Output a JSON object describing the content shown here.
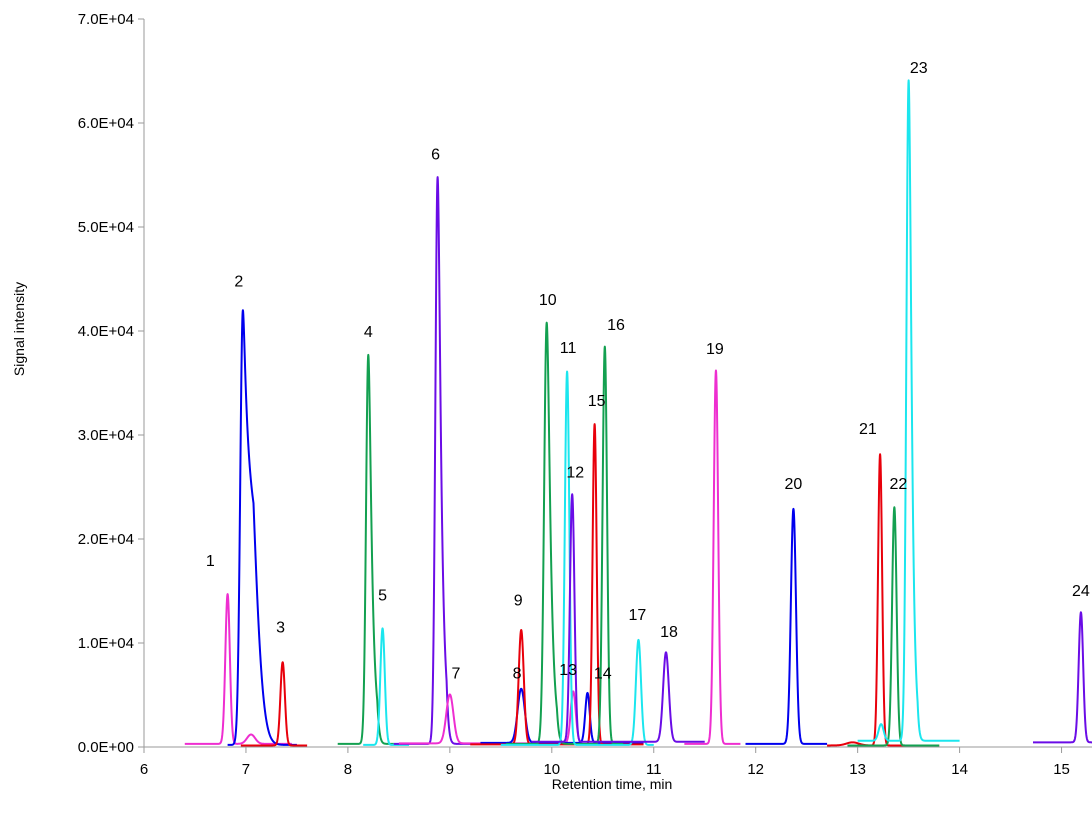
{
  "chart_data": {
    "type": "line",
    "title": "",
    "xlabel": "Retention time, min",
    "ylabel": "Signal intensity",
    "xlim": [
      6,
      15.3
    ],
    "ylim": [
      0,
      70000
    ],
    "x_ticks": [
      6,
      7,
      8,
      9,
      10,
      11,
      12,
      13,
      14,
      15
    ],
    "x_tick_labels": [
      "6",
      "7",
      "8",
      "9",
      "10",
      "11",
      "12",
      "13",
      "14",
      "15"
    ],
    "y_ticks": [
      0,
      10000,
      20000,
      30000,
      40000,
      50000,
      60000,
      70000
    ],
    "y_tick_labels": [
      "0.0E+00",
      "1.0E+04",
      "2.0E+04",
      "3.0E+04",
      "4.0E+04",
      "5.0E+04",
      "6.0E+04",
      "7.0E+04"
    ],
    "grid": false,
    "legend": "none",
    "colors": {
      "magenta": "#ee2ed0",
      "blue": "#0000ee",
      "red": "#e8000b",
      "green": "#13a050",
      "cyan": "#1be6ee",
      "violet": "#6a0ce6"
    },
    "series": [
      {
        "color": "magenta",
        "x_range": [
          6.4,
          7.45
        ],
        "baseline": 300,
        "peaks": [
          {
            "rt": 6.82,
            "height": 14400,
            "width": 0.022
          },
          {
            "rt": 7.05,
            "height": 900,
            "width": 0.04
          }
        ]
      },
      {
        "color": "blue",
        "x_range": [
          6.82,
          7.5
        ],
        "baseline": 200,
        "peaks": [
          {
            "rt": 6.97,
            "height": 41800,
            "width": 0.026,
            "tail": 0.07
          }
        ]
      },
      {
        "color": "red",
        "x_range": [
          6.95,
          7.6
        ],
        "baseline": 150,
        "peaks": [
          {
            "rt": 7.36,
            "height": 8000,
            "width": 0.022
          }
        ]
      },
      {
        "color": "green",
        "x_range": [
          7.9,
          8.45
        ],
        "baseline": 300,
        "peaks": [
          {
            "rt": 8.2,
            "height": 37400,
            "width": 0.022,
            "tail": 0.02
          }
        ]
      },
      {
        "color": "cyan",
        "x_range": [
          8.15,
          8.6
        ],
        "baseline": 200,
        "peaks": [
          {
            "rt": 8.34,
            "height": 11200,
            "width": 0.022
          }
        ]
      },
      {
        "color": "violet",
        "x_range": [
          8.45,
          9.25
        ],
        "baseline": 300,
        "peaks": [
          {
            "rt": 8.88,
            "height": 54500,
            "width": 0.022,
            "tail": 0.02
          }
        ]
      },
      {
        "color": "magenta",
        "x_range": [
          8.5,
          10.3
        ],
        "baseline": 350,
        "peaks": [
          {
            "rt": 9.0,
            "height": 4700,
            "width": 0.035
          },
          {
            "rt": 10.21,
            "height": 5000,
            "width": 0.025
          }
        ]
      },
      {
        "color": "blue",
        "x_range": [
          9.3,
          10.9
        ],
        "baseline": 400,
        "peaks": [
          {
            "rt": 9.7,
            "height": 5200,
            "width": 0.035
          },
          {
            "rt": 10.35,
            "height": 4800,
            "width": 0.022
          }
        ]
      },
      {
        "color": "red",
        "x_range": [
          9.2,
          10.9
        ],
        "baseline": 250,
        "peaks": [
          {
            "rt": 9.7,
            "height": 11000,
            "width": 0.025
          },
          {
            "rt": 10.42,
            "height": 30800,
            "width": 0.02
          }
        ]
      },
      {
        "color": "green",
        "x_range": [
          9.55,
          10.7
        ],
        "baseline": 300,
        "peaks": [
          {
            "rt": 9.95,
            "height": 40500,
            "width": 0.025,
            "tail": 0.02
          },
          {
            "rt": 10.52,
            "height": 38200,
            "width": 0.022
          }
        ]
      },
      {
        "color": "cyan",
        "x_range": [
          9.5,
          11.0
        ],
        "baseline": 200,
        "peaks": [
          {
            "rt": 10.15,
            "height": 35900,
            "width": 0.022
          },
          {
            "rt": 10.85,
            "height": 10100,
            "width": 0.025
          }
        ]
      },
      {
        "color": "violet",
        "x_range": [
          9.8,
          11.5
        ],
        "baseline": 500,
        "peaks": [
          {
            "rt": 10.2,
            "height": 23800,
            "width": 0.022
          },
          {
            "rt": 11.12,
            "height": 8600,
            "width": 0.028
          }
        ]
      },
      {
        "color": "magenta",
        "x_range": [
          11.3,
          11.85
        ],
        "baseline": 300,
        "peaks": [
          {
            "rt": 11.61,
            "height": 35900,
            "width": 0.022
          }
        ]
      },
      {
        "color": "blue",
        "x_range": [
          11.9,
          12.7
        ],
        "baseline": 300,
        "peaks": [
          {
            "rt": 12.37,
            "height": 22600,
            "width": 0.025
          }
        ]
      },
      {
        "color": "red",
        "x_range": [
          12.7,
          13.8
        ],
        "baseline": 150,
        "peaks": [
          {
            "rt": 12.95,
            "height": 300,
            "width": 0.06
          },
          {
            "rt": 13.22,
            "height": 28000,
            "width": 0.02
          }
        ]
      },
      {
        "color": "green",
        "x_range": [
          12.9,
          13.8
        ],
        "baseline": 150,
        "peaks": [
          {
            "rt": 13.36,
            "height": 22900,
            "width": 0.022
          }
        ]
      },
      {
        "color": "cyan",
        "x_range": [
          13.0,
          14.0
        ],
        "baseline": 600,
        "peaks": [
          {
            "rt": 13.23,
            "height": 1600,
            "width": 0.025
          },
          {
            "rt": 13.5,
            "height": 63500,
            "width": 0.022,
            "tail": 0.015
          }
        ]
      },
      {
        "color": "violet",
        "x_range": [
          14.72,
          15.3
        ],
        "baseline": 450,
        "peaks": [
          {
            "rt": 15.19,
            "height": 12500,
            "width": 0.022
          }
        ]
      }
    ],
    "peak_labels": [
      {
        "text": "1",
        "x": 6.65,
        "y": 17400
      },
      {
        "text": "2",
        "x": 6.93,
        "y": 44300
      },
      {
        "text": "3",
        "x": 7.34,
        "y": 11000
      },
      {
        "text": "4",
        "x": 8.2,
        "y": 39400
      },
      {
        "text": "5",
        "x": 8.34,
        "y": 14100
      },
      {
        "text": "6",
        "x": 8.86,
        "y": 56500
      },
      {
        "text": "7",
        "x": 9.06,
        "y": 6600
      },
      {
        "text": "8",
        "x": 9.66,
        "y": 6600
      },
      {
        "text": "9",
        "x": 9.67,
        "y": 13600
      },
      {
        "text": "10",
        "x": 9.96,
        "y": 42500
      },
      {
        "text": "11",
        "x": 10.16,
        "y": 37900
      },
      {
        "text": "12",
        "x": 10.23,
        "y": 25900
      },
      {
        "text": "13",
        "x": 10.16,
        "y": 6900
      },
      {
        "text": "14",
        "x": 10.5,
        "y": 6600
      },
      {
        "text": "15",
        "x": 10.44,
        "y": 32800
      },
      {
        "text": "16",
        "x": 10.63,
        "y": 40100
      },
      {
        "text": "17",
        "x": 10.84,
        "y": 12200
      },
      {
        "text": "18",
        "x": 11.15,
        "y": 10600
      },
      {
        "text": "19",
        "x": 11.6,
        "y": 37800
      },
      {
        "text": "20",
        "x": 12.37,
        "y": 24800
      },
      {
        "text": "21",
        "x": 13.1,
        "y": 30100
      },
      {
        "text": "22",
        "x": 13.4,
        "y": 24800
      },
      {
        "text": "23",
        "x": 13.6,
        "y": 64800
      },
      {
        "text": "24",
        "x": 15.19,
        "y": 14500
      }
    ]
  }
}
